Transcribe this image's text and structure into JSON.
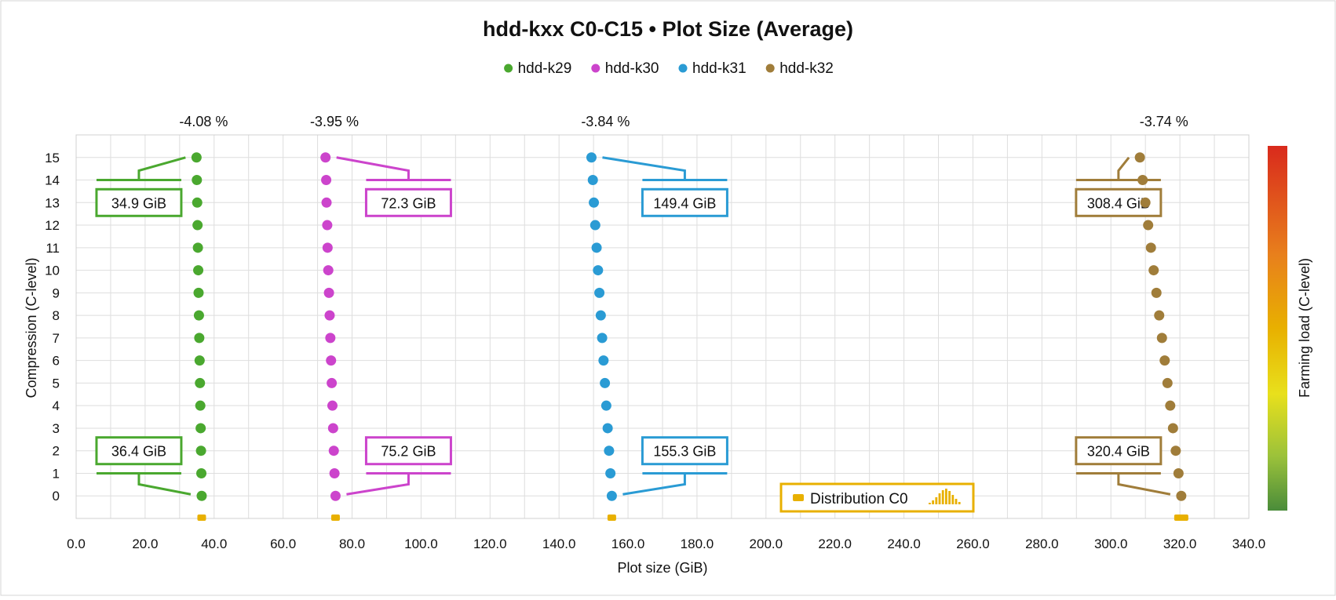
{
  "chart_data": {
    "type": "scatter",
    "title": "hdd-kxx C0-C15 • Plot Size (Average)",
    "xlabel": "Plot size (GiB)",
    "ylabel": "Compression (C-level)",
    "xlim": [
      0,
      340
    ],
    "ylim": [
      -1,
      16
    ],
    "x_ticks": [
      "0.0",
      "20.0",
      "40.0",
      "60.0",
      "80.0",
      "100.0",
      "120.0",
      "140.0",
      "160.0",
      "180.0",
      "200.0",
      "220.0",
      "240.0",
      "260.0",
      "280.0",
      "300.0",
      "320.0",
      "340.0"
    ],
    "y_ticks": [
      "0",
      "1",
      "2",
      "3",
      "4",
      "5",
      "6",
      "7",
      "8",
      "9",
      "10",
      "11",
      "12",
      "13",
      "14",
      "15"
    ],
    "levels": [
      0,
      1,
      2,
      3,
      4,
      5,
      6,
      7,
      8,
      9,
      10,
      11,
      12,
      13,
      14,
      15
    ],
    "legend_position": "top-center",
    "series": [
      {
        "name": "hdd-k29",
        "color": "#4aa82f",
        "values": [
          36.4,
          36.3,
          36.2,
          36.1,
          36.0,
          35.9,
          35.8,
          35.7,
          35.6,
          35.5,
          35.4,
          35.3,
          35.2,
          35.1,
          35.0,
          34.9
        ],
        "change_label": "-4.08 %",
        "top_label": "34.9 GiB",
        "bottom_label": "36.4 GiB",
        "distribution_x": 36.4
      },
      {
        "name": "hdd-k30",
        "color": "#cc44cc",
        "values": [
          75.2,
          74.9,
          74.7,
          74.5,
          74.3,
          74.1,
          73.9,
          73.7,
          73.5,
          73.3,
          73.1,
          72.9,
          72.8,
          72.6,
          72.5,
          72.3
        ],
        "change_label": "-3.95 %",
        "top_label": "72.3 GiB",
        "bottom_label": "75.2 GiB",
        "distribution_x": 75.2
      },
      {
        "name": "hdd-k31",
        "color": "#2a9bd4",
        "values": [
          155.3,
          154.9,
          154.5,
          154.1,
          153.7,
          153.3,
          152.9,
          152.5,
          152.1,
          151.7,
          151.3,
          150.9,
          150.5,
          150.1,
          149.8,
          149.4
        ],
        "change_label": "-3.84 %",
        "top_label": "149.4 GiB",
        "bottom_label": "155.3 GiB",
        "distribution_x": 155.3
      },
      {
        "name": "hdd-k32",
        "color": "#a07d3a",
        "values": [
          320.4,
          319.6,
          318.8,
          318.0,
          317.2,
          316.4,
          315.6,
          314.8,
          314.0,
          313.2,
          312.4,
          311.6,
          310.8,
          310.0,
          309.2,
          308.4
        ],
        "change_label": "-3.74 %",
        "top_label": "308.4 GiB",
        "bottom_label": "320.4 GiB",
        "distribution_x": 320.4
      }
    ],
    "distribution_label": "Distribution C0",
    "distribution_color": "#e8b000",
    "colorbar": {
      "label": "Farming load (C-level)",
      "colors": [
        "#d92a1c",
        "#e8801c",
        "#e8b000",
        "#e8e01c",
        "#9cc23a",
        "#4a8c3a"
      ]
    }
  }
}
